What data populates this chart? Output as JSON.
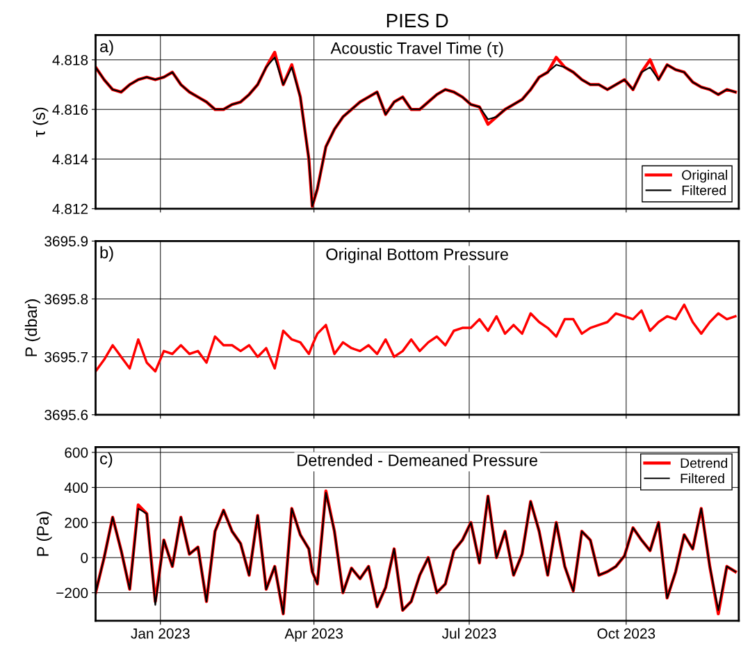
{
  "chart_data": [
    {
      "type": "line",
      "title": "PIES D",
      "subtitle": "Acoustic Travel Time (τ)",
      "ylabel": "τ (s)",
      "annotations": [
        "a)"
      ],
      "x": [
        "2022-11-24",
        "2022-11-29",
        "2022-12-04",
        "2022-12-09",
        "2022-12-14",
        "2022-12-19",
        "2022-12-24",
        "2022-12-29",
        "2023-01-03",
        "2023-01-08",
        "2023-01-13",
        "2023-01-18",
        "2023-01-23",
        "2023-01-28",
        "2023-02-02",
        "2023-02-07",
        "2023-02-12",
        "2023-02-17",
        "2023-02-22",
        "2023-02-27",
        "2023-03-04",
        "2023-03-09",
        "2023-03-14",
        "2023-03-19",
        "2023-03-24",
        "2023-03-29",
        "2023-03-31",
        "2023-04-03",
        "2023-04-08",
        "2023-04-13",
        "2023-04-18",
        "2023-04-23",
        "2023-04-28",
        "2023-05-03",
        "2023-05-08",
        "2023-05-13",
        "2023-05-18",
        "2023-05-23",
        "2023-05-28",
        "2023-06-02",
        "2023-06-07",
        "2023-06-12",
        "2023-06-17",
        "2023-06-22",
        "2023-06-27",
        "2023-07-02",
        "2023-07-07",
        "2023-07-12",
        "2023-07-17",
        "2023-07-22",
        "2023-07-27",
        "2023-08-01",
        "2023-08-06",
        "2023-08-11",
        "2023-08-16",
        "2023-08-21",
        "2023-08-26",
        "2023-08-31",
        "2023-09-05",
        "2023-09-10",
        "2023-09-15",
        "2023-09-20",
        "2023-09-25",
        "2023-09-30",
        "2023-10-05",
        "2023-10-10",
        "2023-10-15",
        "2023-10-20",
        "2023-10-25",
        "2023-10-30",
        "2023-11-04",
        "2023-11-09",
        "2023-11-14",
        "2023-11-19",
        "2023-11-24",
        "2023-11-29",
        "2023-12-04"
      ],
      "series": [
        {
          "name": "Original",
          "color": "#ff0000",
          "values": [
            4.8177,
            4.8172,
            4.8168,
            4.8167,
            4.817,
            4.8172,
            4.8173,
            4.8172,
            4.8173,
            4.8175,
            4.817,
            4.8167,
            4.8165,
            4.8163,
            4.816,
            4.816,
            4.8162,
            4.8163,
            4.8166,
            4.817,
            4.8177,
            4.8183,
            4.817,
            4.8178,
            4.8165,
            4.814,
            4.8121,
            4.8128,
            4.8145,
            4.8152,
            4.8157,
            4.816,
            4.8163,
            4.8165,
            4.8167,
            4.8158,
            4.8163,
            4.8165,
            4.816,
            4.816,
            4.8163,
            4.8166,
            4.8168,
            4.8167,
            4.8165,
            4.8162,
            4.8161,
            4.8154,
            4.8157,
            4.816,
            4.8162,
            4.8164,
            4.8168,
            4.8173,
            4.8175,
            4.8181,
            4.8177,
            4.8175,
            4.8172,
            4.817,
            4.817,
            4.8168,
            4.817,
            4.8172,
            4.8168,
            4.8175,
            4.818,
            4.8172,
            4.8178,
            4.8176,
            4.8175,
            4.8171,
            4.8169,
            4.8168,
            4.8166,
            4.8168,
            4.8167
          ]
        },
        {
          "name": "Filtered",
          "color": "#000000",
          "values": [
            4.8177,
            4.8172,
            4.8168,
            4.8167,
            4.817,
            4.8172,
            4.8173,
            4.8172,
            4.8173,
            4.8175,
            4.817,
            4.8167,
            4.8165,
            4.8163,
            4.816,
            4.816,
            4.8162,
            4.8163,
            4.8166,
            4.817,
            4.8177,
            4.8181,
            4.817,
            4.8177,
            4.8165,
            4.814,
            4.8121,
            4.8128,
            4.8145,
            4.8152,
            4.8157,
            4.816,
            4.8163,
            4.8165,
            4.8167,
            4.8158,
            4.8163,
            4.8165,
            4.816,
            4.816,
            4.8163,
            4.8166,
            4.8168,
            4.8167,
            4.8165,
            4.8162,
            4.8161,
            4.8156,
            4.8157,
            4.816,
            4.8162,
            4.8164,
            4.8168,
            4.8173,
            4.8175,
            4.8178,
            4.8177,
            4.8175,
            4.8172,
            4.817,
            4.817,
            4.8168,
            4.817,
            4.8172,
            4.8168,
            4.8175,
            4.8177,
            4.8172,
            4.8178,
            4.8176,
            4.8175,
            4.8171,
            4.8169,
            4.8168,
            4.8166,
            4.8168,
            4.8167
          ]
        }
      ],
      "xlim": [
        "2022-11-24",
        "2023-12-06"
      ],
      "xticks": [
        {
          "value": "2023-01-01",
          "label": null
        },
        {
          "value": "2023-04-01",
          "label": null
        },
        {
          "value": "2023-07-01",
          "label": null
        },
        {
          "value": "2023-10-01",
          "label": null
        }
      ],
      "ylim": [
        4.812,
        4.819
      ],
      "yticks": [
        4.812,
        4.814,
        4.816,
        4.818
      ],
      "tick_labels": "y",
      "grid": true,
      "legend": "bottom right",
      "line_style": "solid"
    },
    {
      "type": "line",
      "subtitle": "Original Bottom Pressure",
      "ylabel": "P (dbar)",
      "annotations": [
        "b)"
      ],
      "x": [
        "2022-11-24",
        "2022-11-29",
        "2022-12-04",
        "2022-12-09",
        "2022-12-14",
        "2022-12-19",
        "2022-12-24",
        "2022-12-29",
        "2023-01-03",
        "2023-01-08",
        "2023-01-13",
        "2023-01-18",
        "2023-01-23",
        "2023-01-28",
        "2023-02-02",
        "2023-02-07",
        "2023-02-12",
        "2023-02-17",
        "2023-02-22",
        "2023-02-27",
        "2023-03-04",
        "2023-03-09",
        "2023-03-14",
        "2023-03-19",
        "2023-03-24",
        "2023-03-29",
        "2023-03-31",
        "2023-04-03",
        "2023-04-08",
        "2023-04-13",
        "2023-04-18",
        "2023-04-23",
        "2023-04-28",
        "2023-05-03",
        "2023-05-08",
        "2023-05-13",
        "2023-05-18",
        "2023-05-23",
        "2023-05-28",
        "2023-06-02",
        "2023-06-07",
        "2023-06-12",
        "2023-06-17",
        "2023-06-22",
        "2023-06-27",
        "2023-07-02",
        "2023-07-07",
        "2023-07-12",
        "2023-07-17",
        "2023-07-22",
        "2023-07-27",
        "2023-08-01",
        "2023-08-06",
        "2023-08-11",
        "2023-08-16",
        "2023-08-21",
        "2023-08-26",
        "2023-08-31",
        "2023-09-05",
        "2023-09-10",
        "2023-09-15",
        "2023-09-20",
        "2023-09-25",
        "2023-09-30",
        "2023-10-05",
        "2023-10-10",
        "2023-10-15",
        "2023-10-20",
        "2023-10-25",
        "2023-10-30",
        "2023-11-04",
        "2023-11-09",
        "2023-11-14",
        "2023-11-19",
        "2023-11-24",
        "2023-11-29",
        "2023-12-04"
      ],
      "series": [
        {
          "color": "#ff0000",
          "values": [
            3695.675,
            3695.695,
            3695.72,
            3695.7,
            3695.68,
            3695.73,
            3695.69,
            3695.675,
            3695.71,
            3695.705,
            3695.72,
            3695.705,
            3695.71,
            3695.69,
            3695.735,
            3695.72,
            3695.72,
            3695.71,
            3695.72,
            3695.7,
            3695.715,
            3695.68,
            3695.745,
            3695.73,
            3695.725,
            3695.705,
            3695.72,
            3695.74,
            3695.755,
            3695.705,
            3695.725,
            3695.715,
            3695.71,
            3695.72,
            3695.705,
            3695.73,
            3695.7,
            3695.71,
            3695.73,
            3695.71,
            3695.725,
            3695.735,
            3695.72,
            3695.745,
            3695.75,
            3695.75,
            3695.765,
            3695.745,
            3695.77,
            3695.74,
            3695.755,
            3695.74,
            3695.775,
            3695.76,
            3695.75,
            3695.735,
            3695.765,
            3695.765,
            3695.74,
            3695.75,
            3695.755,
            3695.76,
            3695.775,
            3695.77,
            3695.765,
            3695.78,
            3695.745,
            3695.76,
            3695.77,
            3695.765,
            3695.79,
            3695.76,
            3695.74,
            3695.76,
            3695.775,
            3695.765,
            3695.77
          ]
        }
      ],
      "xlim": [
        "2022-11-24",
        "2023-12-06"
      ],
      "xticks": [
        {
          "value": "2023-01-01",
          "label": null
        },
        {
          "value": "2023-04-01",
          "label": null
        },
        {
          "value": "2023-07-01",
          "label": null
        },
        {
          "value": "2023-10-01",
          "label": null
        }
      ],
      "ylim": [
        3695.6,
        3695.9
      ],
      "yticks": [
        3695.6,
        3695.7,
        3695.8,
        3695.9
      ],
      "tick_labels": "y",
      "grid": true,
      "line_style": "solid"
    },
    {
      "type": "line",
      "subtitle": "Detrended - Demeaned Pressure",
      "ylabel": "P (Pa)",
      "annotations": [
        "c)"
      ],
      "x": [
        "2022-11-24",
        "2022-11-29",
        "2022-12-04",
        "2022-12-09",
        "2022-12-14",
        "2022-12-19",
        "2022-12-24",
        "2022-12-29",
        "2023-01-03",
        "2023-01-08",
        "2023-01-13",
        "2023-01-18",
        "2023-01-23",
        "2023-01-28",
        "2023-02-02",
        "2023-02-07",
        "2023-02-12",
        "2023-02-17",
        "2023-02-22",
        "2023-02-27",
        "2023-03-04",
        "2023-03-09",
        "2023-03-14",
        "2023-03-19",
        "2023-03-24",
        "2023-03-29",
        "2023-03-31",
        "2023-04-03",
        "2023-04-08",
        "2023-04-13",
        "2023-04-18",
        "2023-04-23",
        "2023-04-28",
        "2023-05-03",
        "2023-05-08",
        "2023-05-13",
        "2023-05-18",
        "2023-05-23",
        "2023-05-28",
        "2023-06-02",
        "2023-06-07",
        "2023-06-12",
        "2023-06-17",
        "2023-06-22",
        "2023-06-27",
        "2023-07-02",
        "2023-07-07",
        "2023-07-12",
        "2023-07-17",
        "2023-07-22",
        "2023-07-27",
        "2023-08-01",
        "2023-08-06",
        "2023-08-11",
        "2023-08-16",
        "2023-08-21",
        "2023-08-26",
        "2023-08-31",
        "2023-09-05",
        "2023-09-10",
        "2023-09-15",
        "2023-09-20",
        "2023-09-25",
        "2023-09-30",
        "2023-10-05",
        "2023-10-10",
        "2023-10-15",
        "2023-10-20",
        "2023-10-25",
        "2023-10-30",
        "2023-11-04",
        "2023-11-09",
        "2023-11-14",
        "2023-11-19",
        "2023-11-24",
        "2023-11-29",
        "2023-12-04"
      ],
      "series": [
        {
          "name": "Detrend",
          "color": "#ff0000",
          "values": [
            -200,
            0,
            230,
            40,
            -180,
            300,
            250,
            -250,
            100,
            -50,
            230,
            20,
            60,
            -250,
            150,
            270,
            150,
            80,
            -100,
            240,
            -180,
            -50,
            -320,
            280,
            130,
            50,
            -80,
            -150,
            380,
            150,
            -200,
            -60,
            -120,
            -50,
            -280,
            -170,
            50,
            -300,
            -250,
            -100,
            0,
            -200,
            -150,
            40,
            100,
            200,
            -30,
            350,
            0,
            150,
            -100,
            20,
            320,
            150,
            -100,
            200,
            -50,
            -190,
            150,
            100,
            -100,
            -80,
            -50,
            10,
            170,
            100,
            40,
            200,
            -230,
            -80,
            130,
            50,
            280,
            -50,
            -320,
            -50,
            -80
          ]
        },
        {
          "name": "Filtered",
          "color": "#000000",
          "values": [
            -200,
            0,
            230,
            40,
            -180,
            280,
            250,
            -270,
            100,
            -50,
            230,
            20,
            60,
            -250,
            150,
            270,
            150,
            80,
            -100,
            240,
            -180,
            -50,
            -320,
            280,
            130,
            50,
            -80,
            -150,
            370,
            150,
            -200,
            -60,
            -120,
            -50,
            -280,
            -170,
            50,
            -300,
            -250,
            -100,
            0,
            -200,
            -150,
            40,
            100,
            200,
            -30,
            350,
            0,
            150,
            -100,
            20,
            320,
            150,
            -100,
            200,
            -50,
            -190,
            150,
            100,
            -100,
            -80,
            -50,
            10,
            170,
            100,
            40,
            200,
            -230,
            -80,
            130,
            50,
            280,
            -50,
            -300,
            -50,
            -80
          ]
        }
      ],
      "xlim": [
        "2022-11-24",
        "2023-12-06"
      ],
      "xticks": [
        {
          "value": "2023-01-01",
          "label": "Jan 2023"
        },
        {
          "value": "2023-04-01",
          "label": "Apr 2023"
        },
        {
          "value": "2023-07-01",
          "label": "Jul 2023"
        },
        {
          "value": "2023-10-01",
          "label": "Oct 2023"
        }
      ],
      "ylim": [
        -360,
        630
      ],
      "yticks": [
        {
          "value": -200,
          "label": "−200"
        },
        0,
        200,
        400,
        600
      ],
      "grid": true,
      "legend": "top right",
      "line_style": "solid"
    }
  ]
}
